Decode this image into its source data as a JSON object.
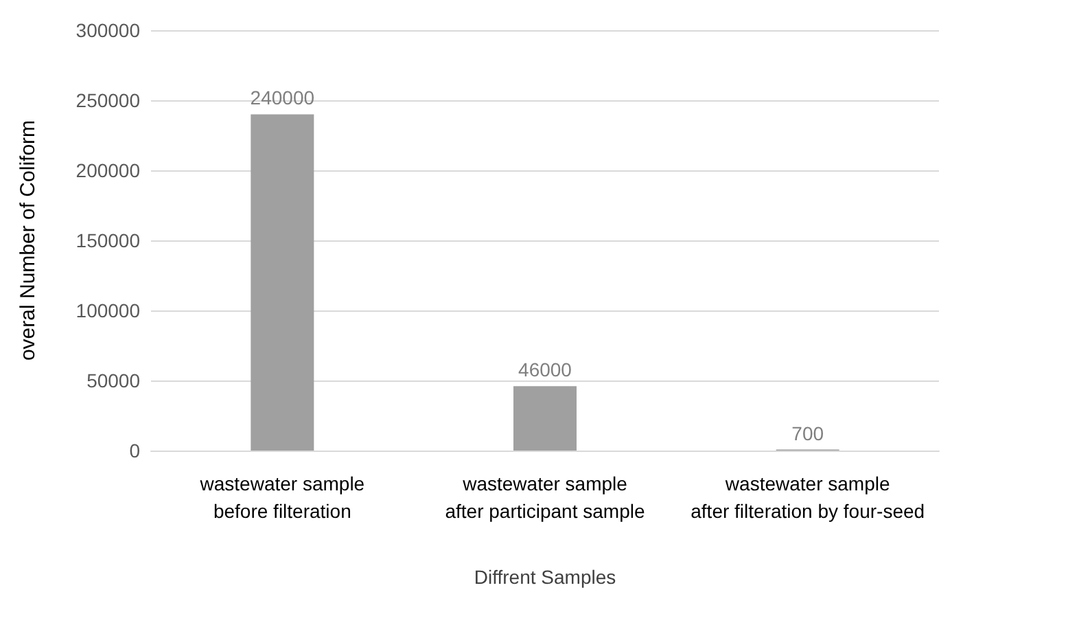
{
  "chart_data": {
    "type": "bar",
    "xlabel": "Diffrent Samples",
    "ylabel": "overal Number of Coliform",
    "categories": [
      "wastewater sample\nbefore filteration",
      "wastewater sample\nafter participant sample",
      "wastewater sample\nafter filteration by four-seed"
    ],
    "values": [
      240000,
      46000,
      700
    ],
    "color": "#a0a0a0",
    "ylim": [
      0,
      300000
    ],
    "yticks": [
      0,
      50000,
      100000,
      150000,
      200000,
      250000,
      300000
    ],
    "grid": "y",
    "data_labels": true
  }
}
